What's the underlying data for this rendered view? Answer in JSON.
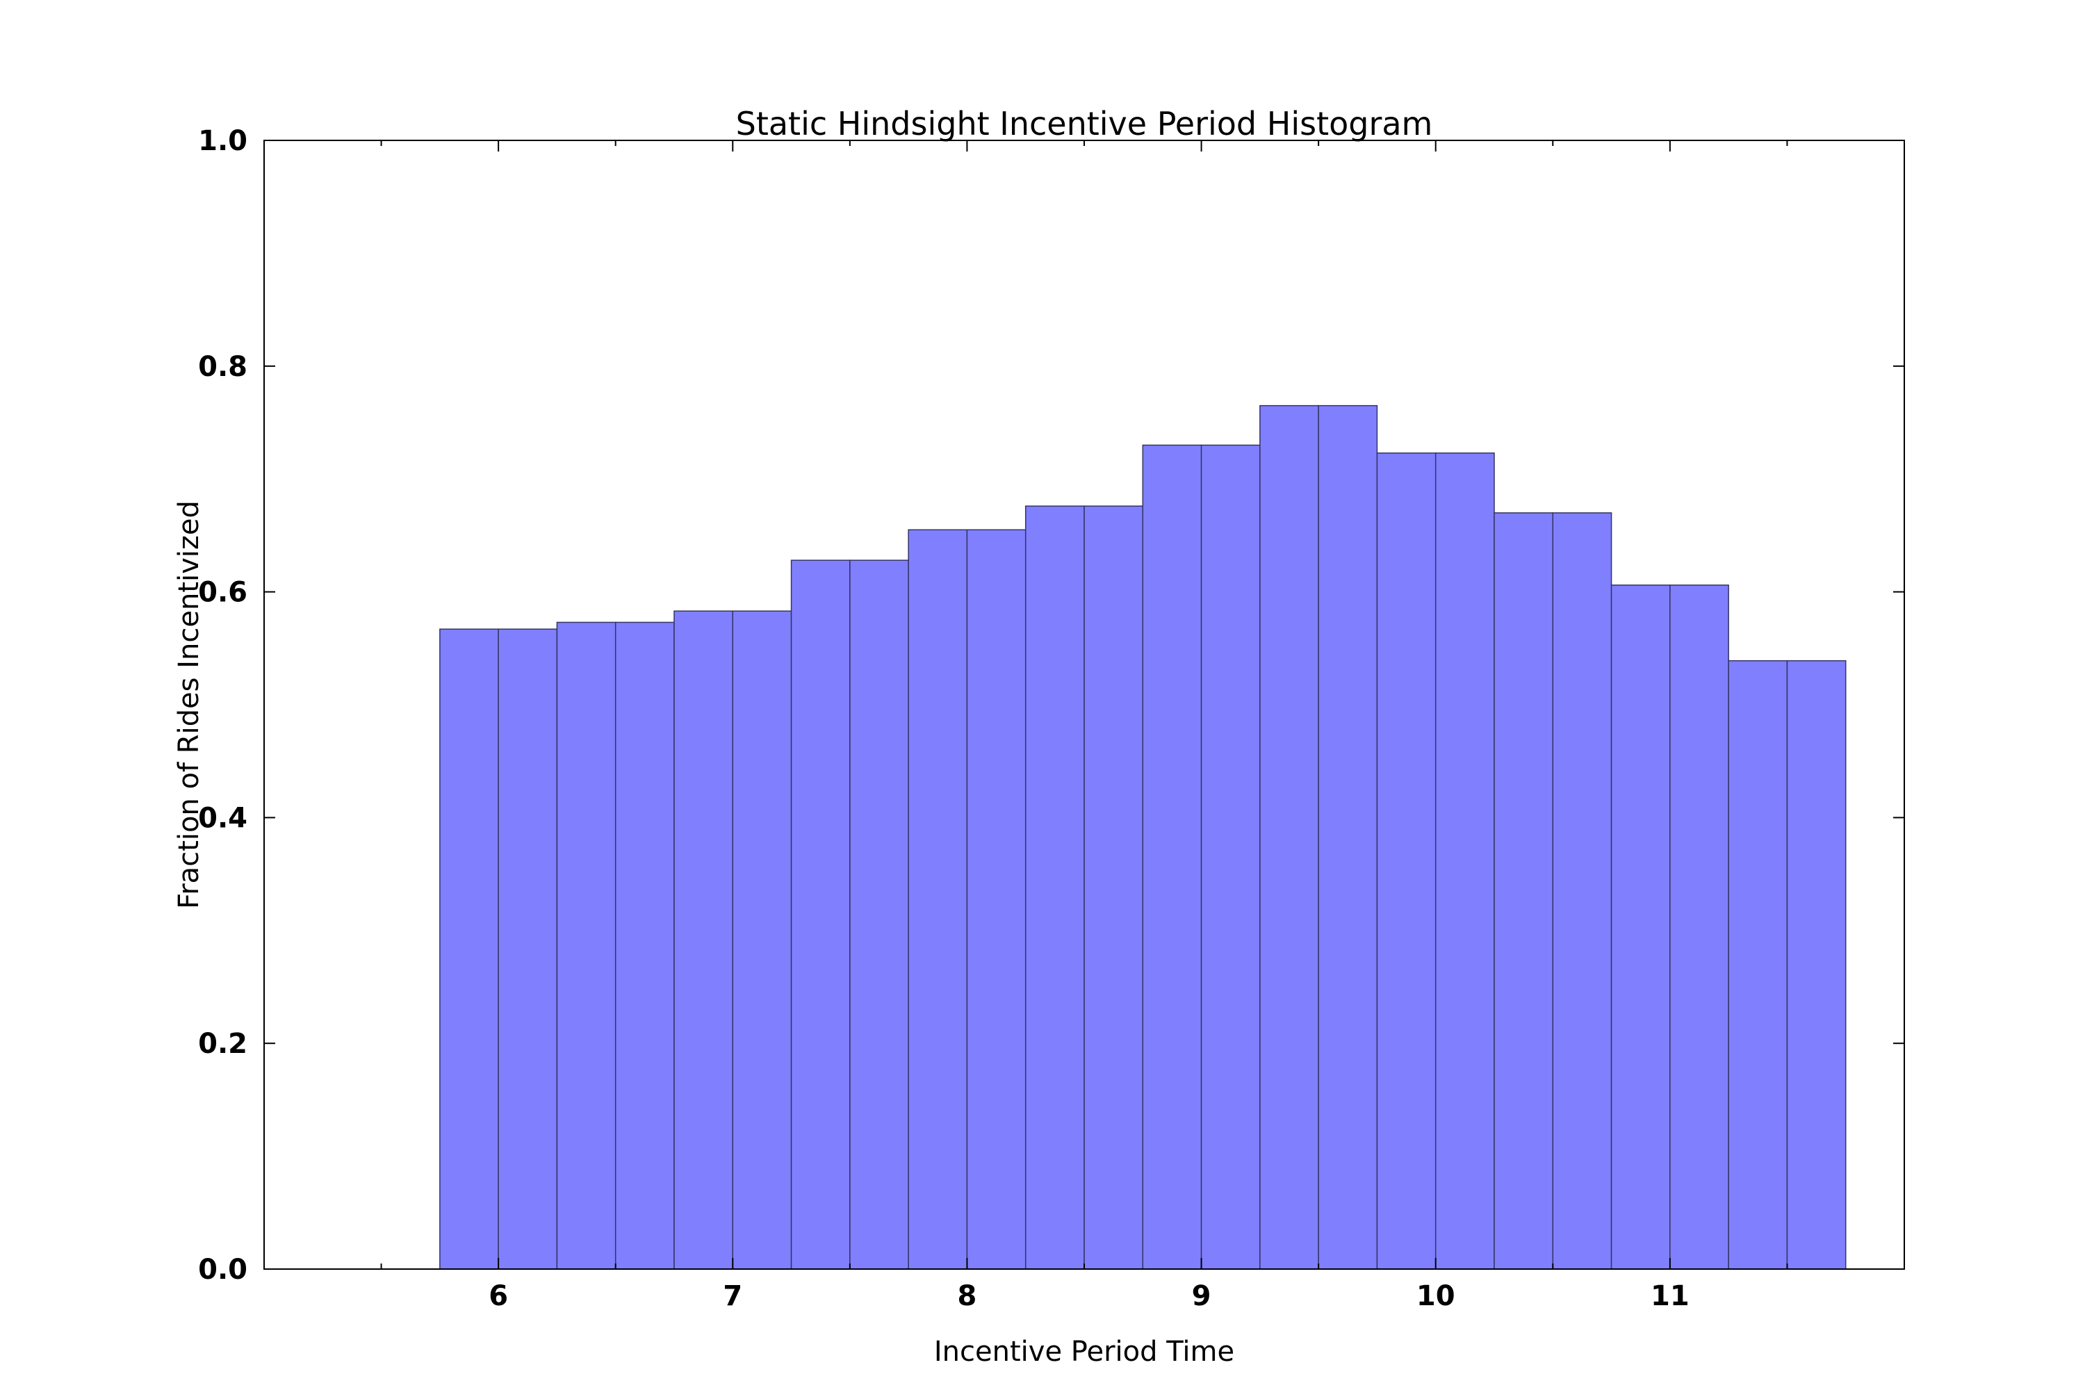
{
  "chart_data": {
    "type": "bar",
    "title": "Static Hindsight Incentive Period Histogram",
    "xlabel": "Incentive Period Time",
    "ylabel": "Fraction of Rides Incentivized",
    "xlim": [
      5,
      12
    ],
    "ylim": [
      0,
      1.0
    ],
    "bar_width": 0.25,
    "x": [
      5.875,
      6.125,
      6.375,
      6.625,
      6.875,
      7.125,
      7.375,
      7.625,
      7.875,
      8.125,
      8.375,
      8.625,
      8.875,
      9.125,
      9.375,
      9.625,
      9.875,
      10.125,
      10.375,
      10.625,
      10.875,
      11.125,
      11.375,
      11.625
    ],
    "values": [
      0.567,
      0.567,
      0.573,
      0.573,
      0.583,
      0.583,
      0.628,
      0.628,
      0.655,
      0.655,
      0.676,
      0.676,
      0.73,
      0.73,
      0.765,
      0.765,
      0.723,
      0.723,
      0.67,
      0.67,
      0.606,
      0.606,
      0.539,
      0.539
    ],
    "xticks": [
      "6",
      "7",
      "8",
      "9",
      "10",
      "11"
    ],
    "xtick_values": [
      6,
      7,
      8,
      9,
      10,
      11
    ],
    "yticks": [
      "0.0",
      "0.2",
      "0.4",
      "0.6",
      "0.8",
      "1.0"
    ],
    "ytick_values": [
      0.0,
      0.2,
      0.4,
      0.6,
      0.8,
      1.0
    ],
    "bar_color": "#8080ff",
    "bar_edge_color": "#333366",
    "grid": false,
    "legend": "none"
  }
}
